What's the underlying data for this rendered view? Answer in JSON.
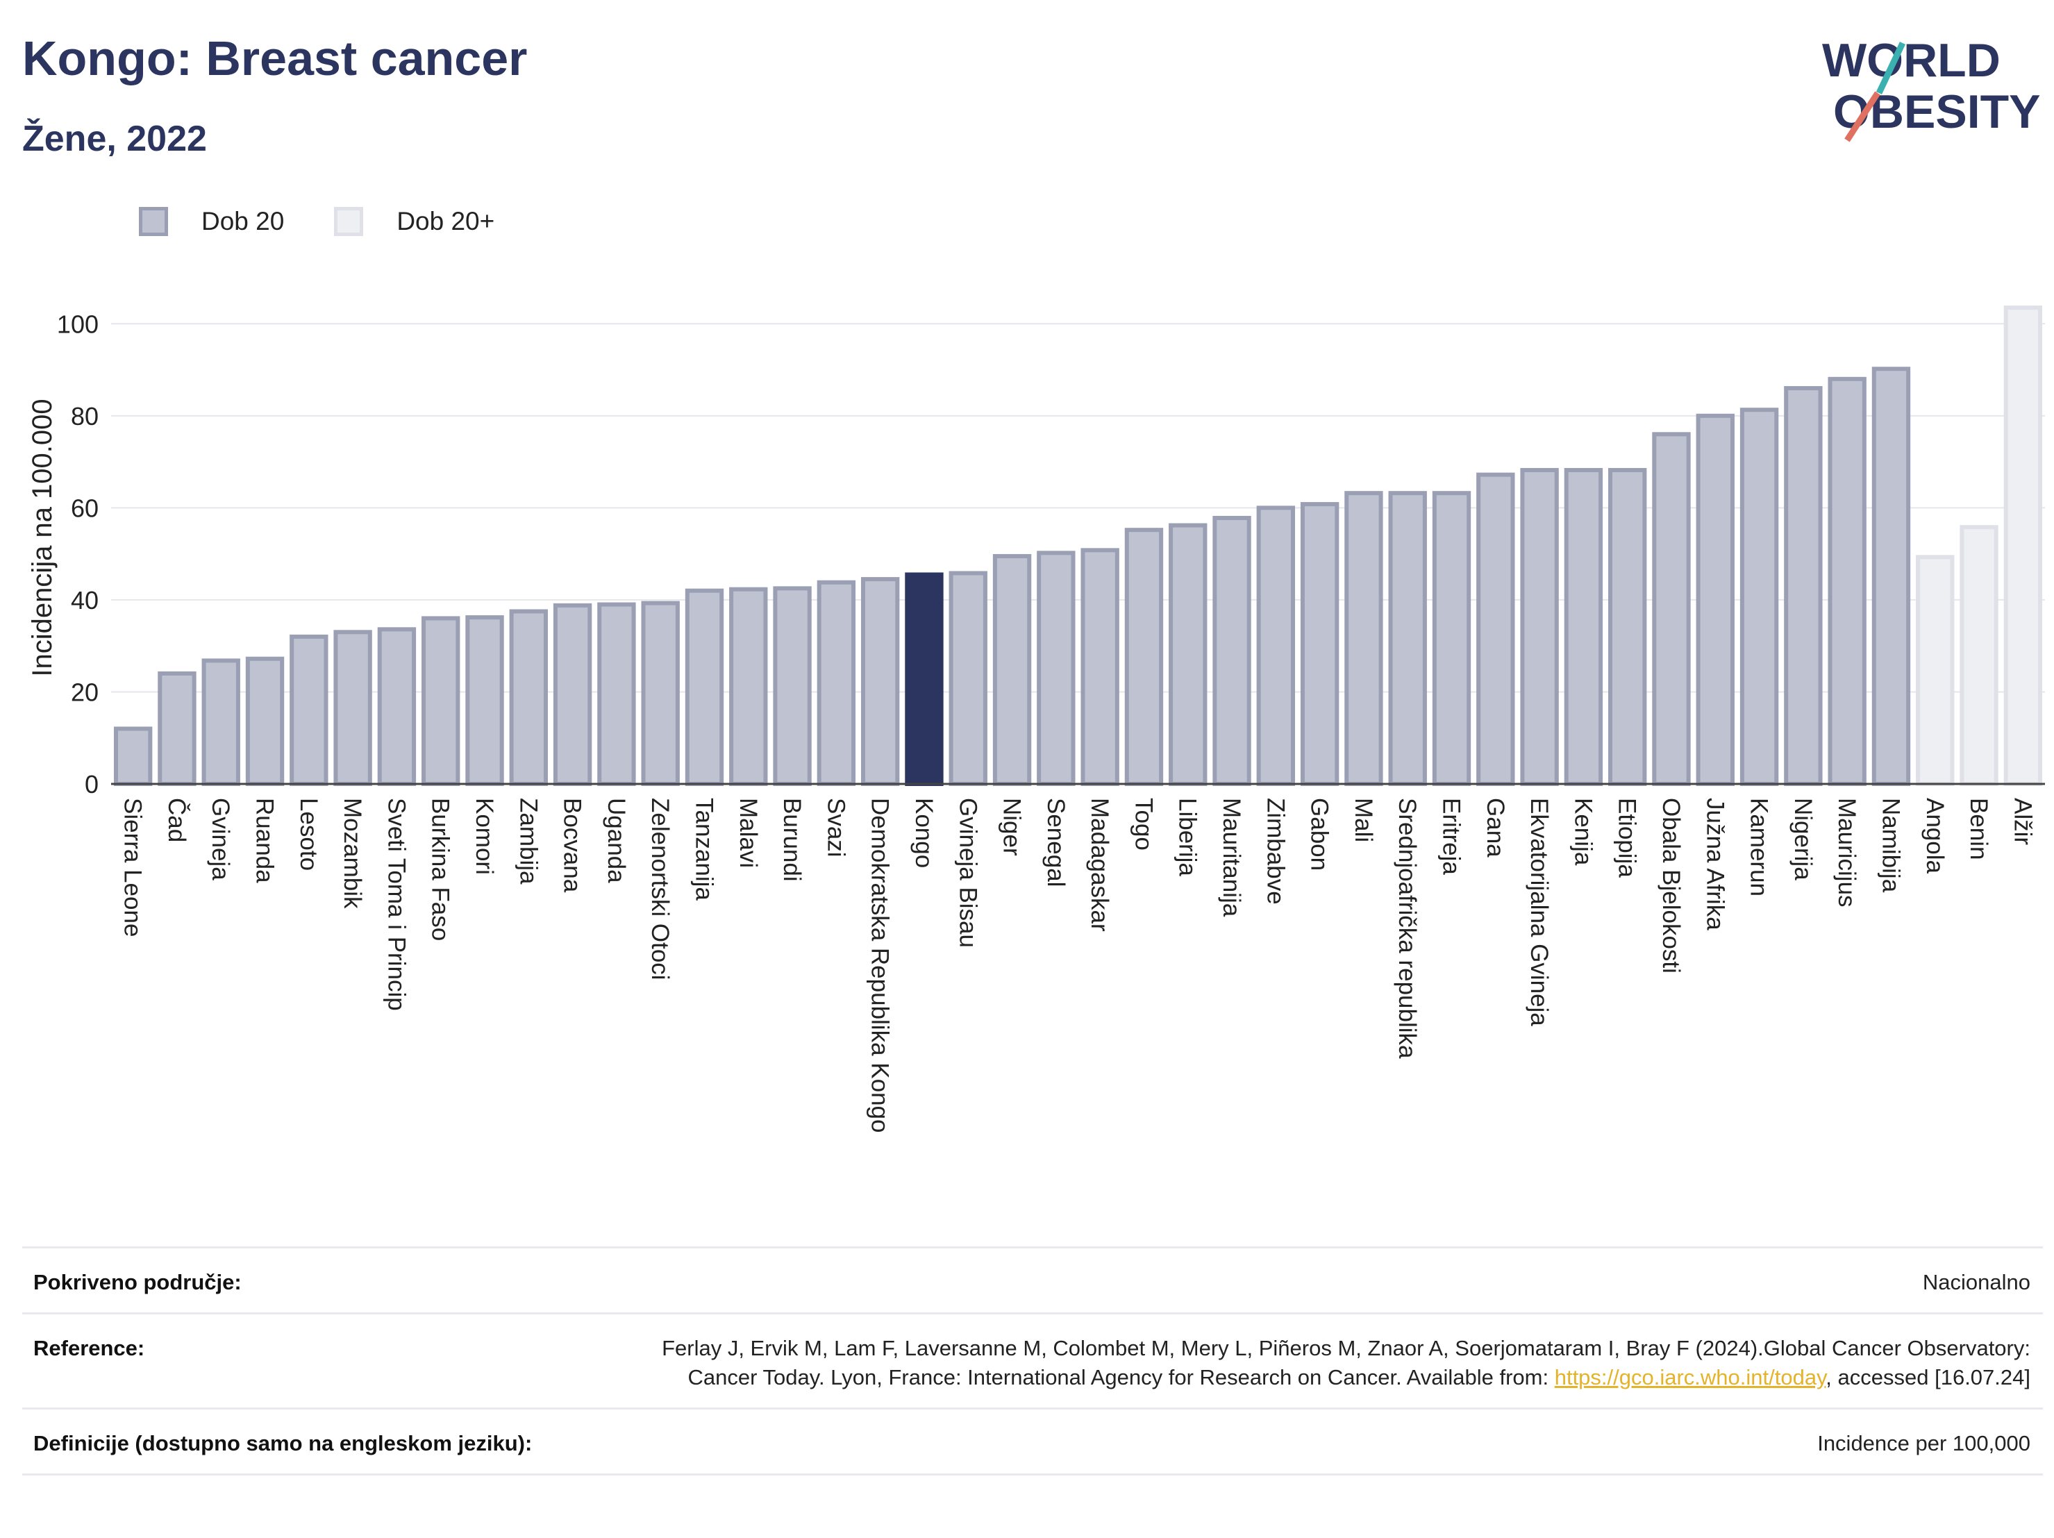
{
  "header": {
    "title": "Kongo: Breast cancer",
    "subtitle": "Žene, 2022"
  },
  "logo": {
    "line1": "WORLD",
    "line2": "OBESITY"
  },
  "legend": [
    {
      "label": "Dob 20",
      "color": "#bfc2d0"
    },
    {
      "label": "Dob 20+",
      "color": "#eeeff3"
    }
  ],
  "chart_data": {
    "type": "bar",
    "ylabel": "Incidencija na 100.000",
    "ylim": [
      0,
      110
    ],
    "yticks": [
      0,
      20,
      40,
      60,
      80,
      100
    ],
    "grid": true,
    "highlight_color": "#2b3560",
    "series_colors": {
      "Dob 20": "#bfc2d0",
      "Dob 20+": "#eeeff3"
    },
    "categories": [
      "Sierra Leone",
      "Čad",
      "Gvineja",
      "Ruanda",
      "Lesoto",
      "Mozambik",
      "Sveti Toma i Princip",
      "Burkina Faso",
      "Komori",
      "Zambija",
      "Bocvana",
      "Uganda",
      "Zelenortski Otoci",
      "Tanzanija",
      "Malavi",
      "Burundi",
      "Svazi",
      "Demokratska Republika Kongo",
      "Kongo",
      "Gvineja Bisau",
      "Niger",
      "Senegal",
      "Madagaskar",
      "Togo",
      "Liberija",
      "Mauritanija",
      "Zimbabve",
      "Gabon",
      "Mali",
      "Srednjoafrička republika",
      "Eritreja",
      "Gana",
      "Ekvatorijalna Gvineja",
      "Kenija",
      "Etiopija",
      "Obala Bjelokosti",
      "Južna Afrika",
      "Kamerun",
      "Nigerija",
      "Mauricijus",
      "Namibija",
      "Angola",
      "Benin",
      "Alžir"
    ],
    "values": [
      12,
      24,
      26.8,
      27.2,
      32,
      33,
      33.6,
      36,
      36.2,
      37.5,
      38.8,
      39,
      39.3,
      42,
      42.3,
      42.5,
      43.8,
      44.5,
      45.5,
      45.8,
      49.5,
      50.2,
      50.8,
      55.2,
      56.2,
      57.8,
      60,
      60.8,
      63.2,
      63.2,
      63.2,
      67.2,
      68.2,
      68.2,
      68.2,
      76,
      80,
      81.3,
      86,
      88,
      90.2,
      49.3,
      55.8,
      103.5
    ],
    "series": [
      "Dob 20",
      "Dob 20",
      "Dob 20",
      "Dob 20",
      "Dob 20",
      "Dob 20",
      "Dob 20",
      "Dob 20",
      "Dob 20",
      "Dob 20",
      "Dob 20",
      "Dob 20",
      "Dob 20",
      "Dob 20",
      "Dob 20",
      "Dob 20",
      "Dob 20",
      "Dob 20",
      "Dob 20",
      "Dob 20",
      "Dob 20",
      "Dob 20",
      "Dob 20",
      "Dob 20",
      "Dob 20",
      "Dob 20",
      "Dob 20",
      "Dob 20",
      "Dob 20",
      "Dob 20",
      "Dob 20",
      "Dob 20",
      "Dob 20",
      "Dob 20",
      "Dob 20",
      "Dob 20",
      "Dob 20",
      "Dob 20",
      "Dob 20",
      "Dob 20",
      "Dob 20",
      "Dob 20+",
      "Dob 20+",
      "Dob 20+"
    ],
    "highlight": "Kongo"
  },
  "info": [
    {
      "key": "Pokriveno područje:",
      "value": "Nacionalno"
    },
    {
      "key": "Reference:",
      "value_pre": "Ferlay J, Ervik M, Lam F, Laversanne M, Colombet M, Mery L, Piñeros M, Znaor A, Soerjomataram I, Bray F (2024).Global Cancer Observatory: Cancer Today. Lyon, France: International Agency for Research on Cancer. Available from: ",
      "link": "https://gco.iarc.who.int/today",
      "value_post": ", accessed [16.07.24]"
    },
    {
      "key": "Definicije (dostupno samo na engleskom jeziku):",
      "value": "Incidence per 100,000"
    }
  ]
}
